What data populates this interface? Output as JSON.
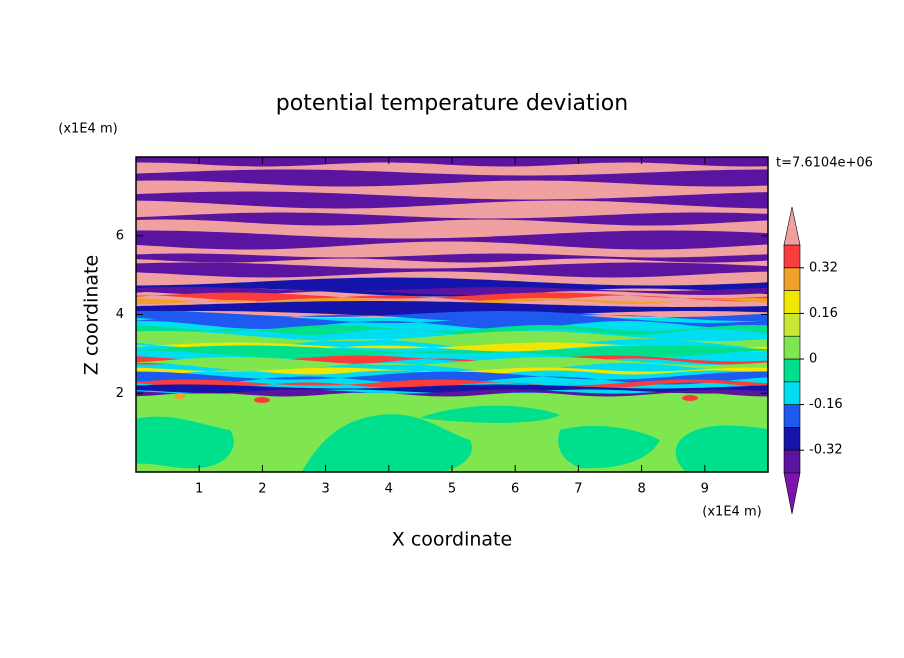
{
  "chart_data": {
    "type": "contour",
    "title": "potential temperature deviation",
    "xlabel": "X coordinate",
    "ylabel": "Z coordinate",
    "x_unit": "(x1E4 m)",
    "y_unit": "(x1E4 m)",
    "annotation": "t=7.6104e+06",
    "xlim": [
      0,
      10
    ],
    "xticks": [
      1,
      2,
      3,
      4,
      5,
      6,
      7,
      8,
      9
    ],
    "ylim": [
      0,
      8
    ],
    "yticks": [
      2,
      4,
      6
    ],
    "colorbar": {
      "levels": [
        -0.4,
        -0.32,
        -0.24,
        -0.16,
        -0.08,
        0,
        0.08,
        0.16,
        0.24,
        0.32,
        0.4
      ],
      "colors": [
        "#7c14b0",
        "#5a14a0",
        "#1414aa",
        "#1e5af0",
        "#00dcf0",
        "#00e08c",
        "#80e650",
        "#c8e632",
        "#f0e600",
        "#f0a028",
        "#fa3c3c",
        "#f0a0a0"
      ],
      "ticks": [
        -0.32,
        -0.16,
        0,
        0.16,
        0.32
      ]
    }
  }
}
